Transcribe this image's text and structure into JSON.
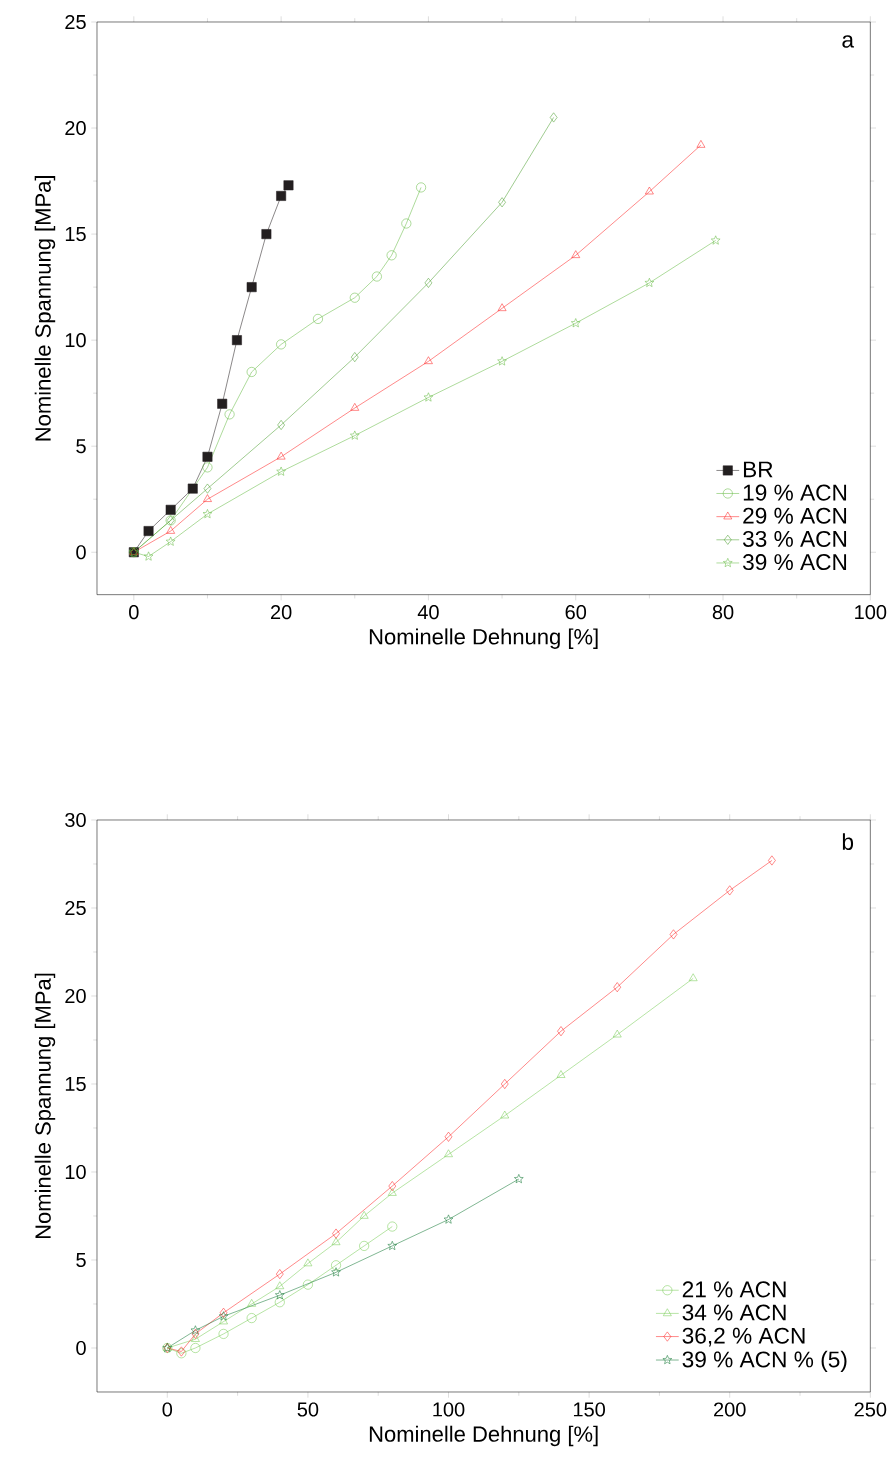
{
  "chart_data": [
    {
      "type": "line",
      "xlabel": "Nominelle Dehnung [%]",
      "ylabel": "Nominelle Spannung [MPa]",
      "annotations": [
        "a"
      ],
      "xlim": [
        -5,
        100
      ],
      "ylim": [
        -2,
        25
      ],
      "xticks": [
        0,
        20,
        40,
        60,
        80,
        100
      ],
      "yticks": [
        0,
        5,
        10,
        15,
        20,
        25
      ],
      "legend": "bottom right",
      "series": [
        {
          "name": "BR",
          "color": "#231f20",
          "marker": "square",
          "x": [
            0,
            2,
            5,
            8,
            10,
            12,
            14,
            16,
            18,
            20,
            21
          ],
          "values": [
            0,
            1,
            2,
            3,
            4.5,
            7,
            10,
            12.5,
            15,
            16.8,
            17.3
          ]
        },
        {
          "name": "19 % ACN",
          "color": "#66bb44",
          "marker": "circle",
          "x": [
            0,
            5,
            10,
            13,
            16,
            20,
            25,
            30,
            33,
            35,
            37,
            39
          ],
          "values": [
            0,
            1.5,
            4,
            6.5,
            8.5,
            9.8,
            11,
            12,
            13,
            14,
            15.5,
            17.2
          ]
        },
        {
          "name": "29 % ACN",
          "color": "#ff2222",
          "marker": "triangle",
          "x": [
            0,
            5,
            10,
            20,
            30,
            40,
            50,
            60,
            70,
            77
          ],
          "values": [
            0,
            1,
            2.5,
            4.5,
            6.8,
            9,
            11.5,
            14,
            17,
            19.2
          ]
        },
        {
          "name": "33 % ACN",
          "color": "#4c9f30",
          "marker": "diamond",
          "x": [
            0,
            5,
            10,
            20,
            30,
            40,
            50,
            57
          ],
          "values": [
            0,
            1.5,
            3,
            6,
            9.2,
            12.7,
            16.5,
            20.5
          ]
        },
        {
          "name": "39 % ACN",
          "color": "#66bb44",
          "marker": "star",
          "x": [
            0,
            2,
            5,
            10,
            20,
            30,
            40,
            50,
            60,
            70,
            79
          ],
          "values": [
            0,
            -0.2,
            0.5,
            1.8,
            3.8,
            5.5,
            7.3,
            9,
            10.8,
            12.7,
            14.7
          ]
        }
      ]
    },
    {
      "type": "line",
      "xlabel": "Nominelle Dehnung [%]",
      "ylabel": "Nominelle Spannung [MPa]",
      "annotations": [
        "b"
      ],
      "xlim": [
        -25,
        250
      ],
      "ylim": [
        -2.5,
        30
      ],
      "xticks": [
        0,
        50,
        100,
        150,
        200,
        250
      ],
      "yticks": [
        0,
        5,
        10,
        15,
        20,
        25,
        30
      ],
      "legend": "bottom right",
      "series": [
        {
          "name": "21 % ACN",
          "color": "#77cc55",
          "marker": "circle",
          "x": [
            0,
            5,
            10,
            20,
            30,
            40,
            50,
            60,
            70,
            80
          ],
          "values": [
            0,
            -0.3,
            0,
            0.8,
            1.7,
            2.6,
            3.6,
            4.7,
            5.8,
            6.9
          ]
        },
        {
          "name": "34 % ACN",
          "color": "#77cc55",
          "marker": "triangle",
          "x": [
            0,
            10,
            20,
            30,
            40,
            50,
            60,
            70,
            80,
            100,
            120,
            140,
            160,
            187
          ],
          "values": [
            0,
            0.5,
            1.5,
            2.5,
            3.5,
            4.8,
            6,
            7.5,
            8.8,
            11,
            13.2,
            15.5,
            17.8,
            21
          ]
        },
        {
          "name": "36,2 % ACN",
          "color": "#ff2222",
          "marker": "diamond",
          "x": [
            0,
            5,
            10,
            20,
            40,
            60,
            80,
            100,
            120,
            140,
            160,
            180,
            200,
            215
          ],
          "values": [
            0,
            -0.2,
            0.8,
            2,
            4.2,
            6.5,
            9.2,
            12,
            15,
            18,
            20.5,
            23.5,
            26,
            27.7
          ]
        },
        {
          "name": "39 % ACN % (5)",
          "color": "#117733",
          "marker": "star",
          "x": [
            0,
            10,
            20,
            40,
            60,
            80,
            100,
            125
          ],
          "values": [
            0,
            1,
            1.8,
            3,
            4.3,
            5.8,
            7.3,
            9.6
          ]
        }
      ]
    }
  ]
}
